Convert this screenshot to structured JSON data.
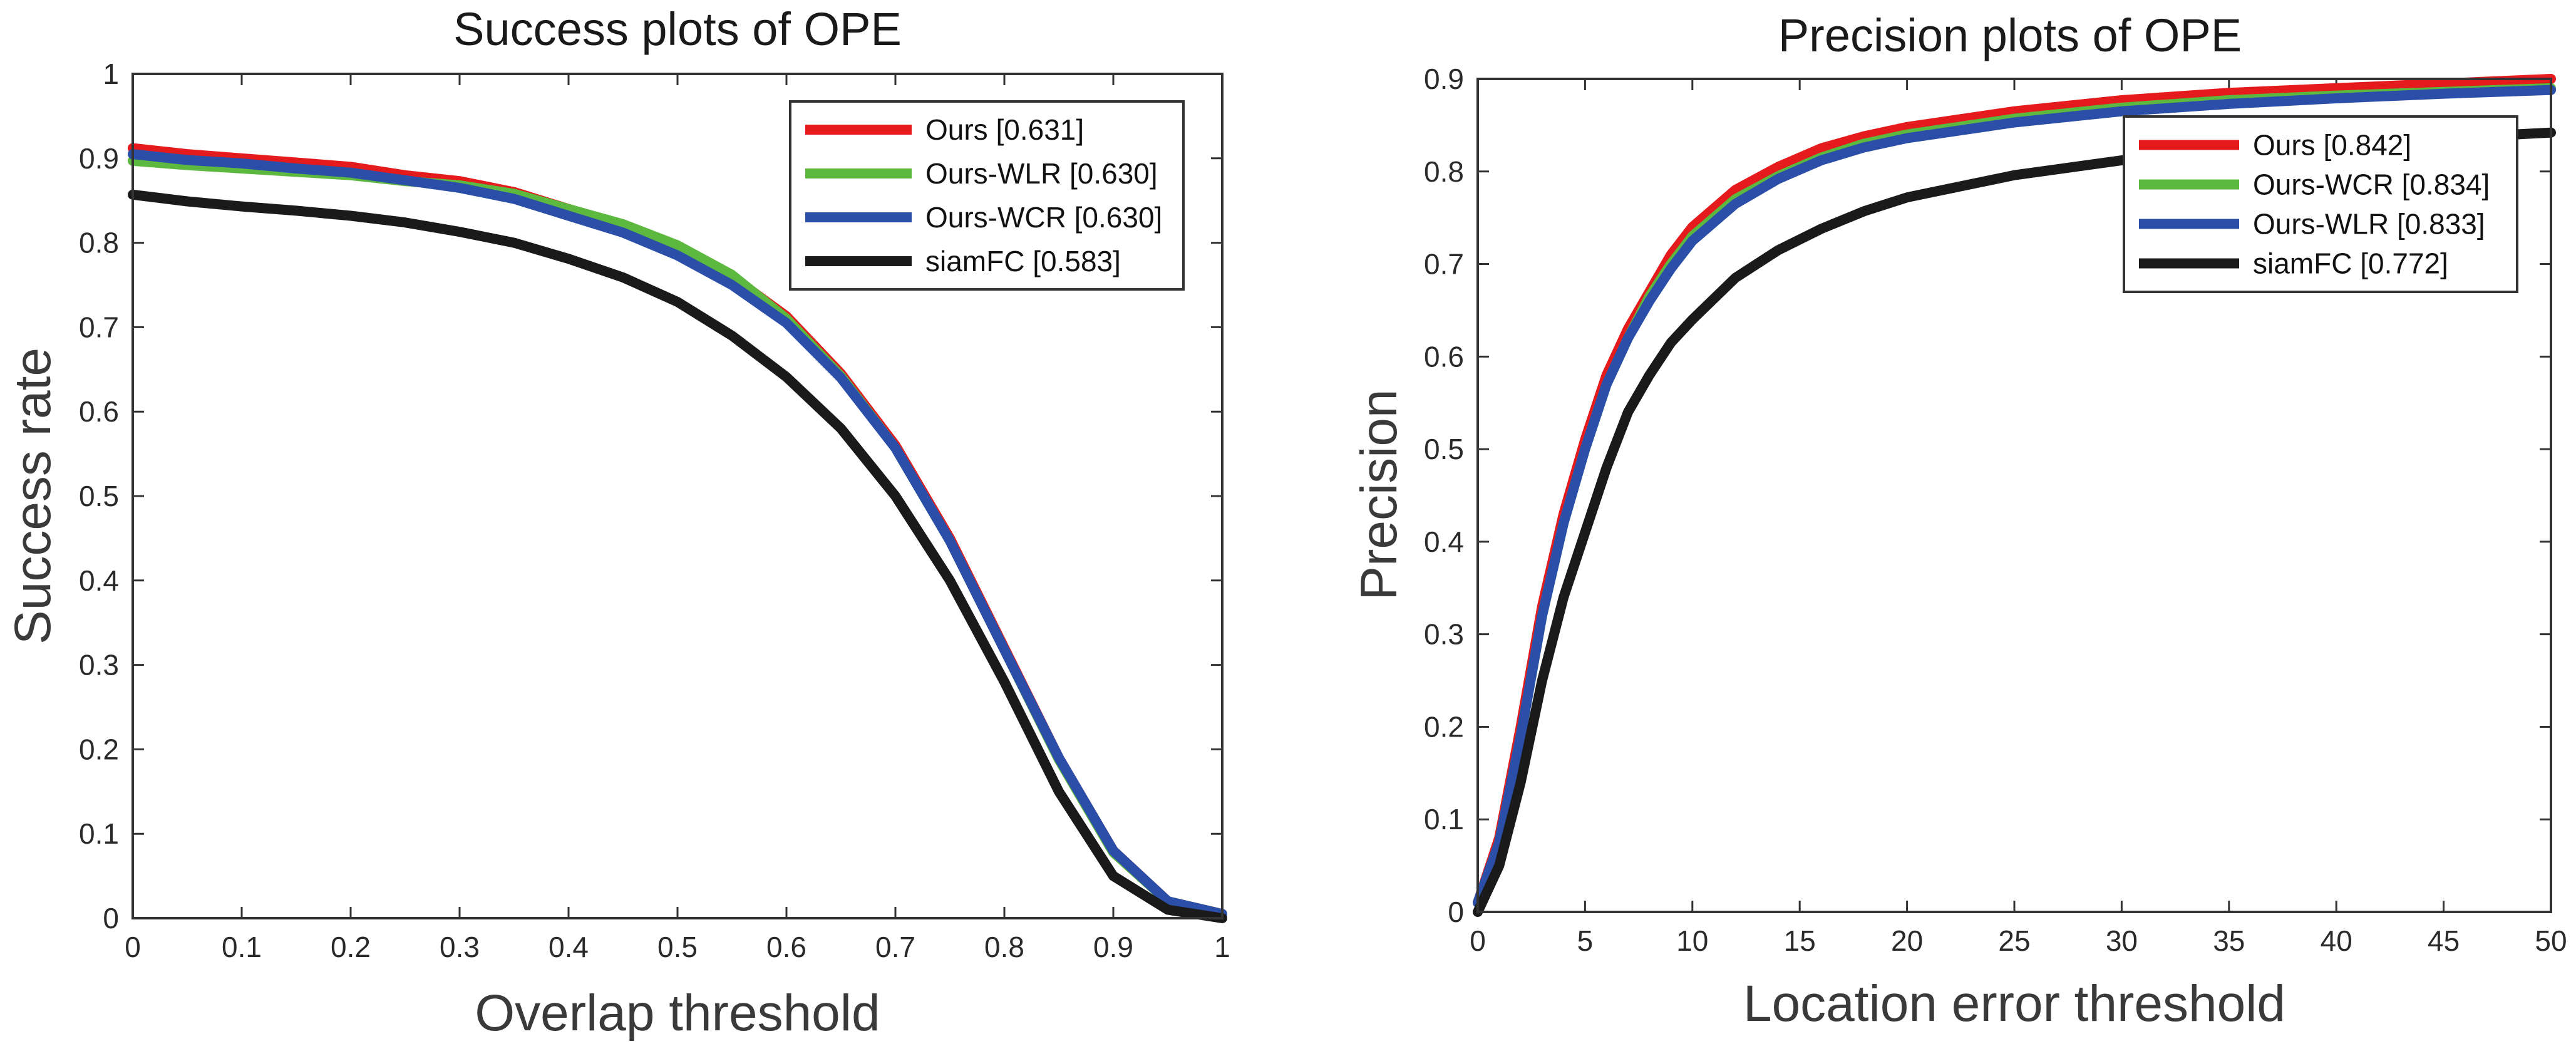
{
  "chart_data": [
    {
      "type": "line",
      "title": "Success plots of OPE",
      "xlabel": "Overlap threshold",
      "ylabel": "Success rate",
      "xlim": [
        0,
        1
      ],
      "ylim": [
        0,
        1
      ],
      "xticks": [
        0,
        0.1,
        0.2,
        0.3,
        0.4,
        0.5,
        0.6,
        0.7,
        0.8,
        0.9,
        1
      ],
      "yticks": [
        0,
        0.1,
        0.2,
        0.3,
        0.4,
        0.5,
        0.6,
        0.7,
        0.8,
        0.9,
        1
      ],
      "xtick_labels": [
        "0",
        "0.1",
        "0.2",
        "0.3",
        "0.4",
        "0.5",
        "0.6",
        "0.7",
        "0.8",
        "0.9",
        "1"
      ],
      "ytick_labels": [
        "0",
        "0.1",
        "0.2",
        "0.3",
        "0.4",
        "0.5",
        "0.6",
        "0.7",
        "0.8",
        "0.9",
        "1"
      ],
      "grid": false,
      "legend_position": "top-right",
      "x": [
        0,
        0.05,
        0.1,
        0.15,
        0.2,
        0.25,
        0.3,
        0.35,
        0.4,
        0.45,
        0.5,
        0.55,
        0.6,
        0.65,
        0.7,
        0.75,
        0.8,
        0.85,
        0.9,
        0.95,
        1
      ],
      "series": [
        {
          "name": "Ours [0.631]",
          "color": "#e41a1c",
          "width": 16,
          "values": [
            0.912,
            0.905,
            0.9,
            0.895,
            0.89,
            0.88,
            0.873,
            0.86,
            0.84,
            0.82,
            0.795,
            0.76,
            0.713,
            0.645,
            0.56,
            0.45,
            0.32,
            0.19,
            0.08,
            0.02,
            0.005
          ]
        },
        {
          "name": "Ours-WLR [0.630]",
          "color": "#5cb83f",
          "width": 16,
          "values": [
            0.897,
            0.892,
            0.888,
            0.884,
            0.88,
            0.873,
            0.868,
            0.858,
            0.84,
            0.822,
            0.797,
            0.762,
            0.71,
            0.642,
            0.557,
            0.447,
            0.318,
            0.188,
            0.078,
            0.02,
            0.005
          ]
        },
        {
          "name": "Ours-WCR [0.630]",
          "color": "#2b4fa8",
          "width": 16,
          "values": [
            0.905,
            0.898,
            0.894,
            0.888,
            0.883,
            0.874,
            0.865,
            0.852,
            0.832,
            0.812,
            0.785,
            0.75,
            0.705,
            0.64,
            0.557,
            0.447,
            0.318,
            0.19,
            0.08,
            0.02,
            0.005
          ]
        },
        {
          "name": "siamFC [0.583]",
          "color": "#1a1a1a",
          "width": 16,
          "values": [
            0.857,
            0.849,
            0.843,
            0.838,
            0.832,
            0.824,
            0.813,
            0.8,
            0.781,
            0.759,
            0.73,
            0.69,
            0.641,
            0.58,
            0.5,
            0.4,
            0.28,
            0.15,
            0.05,
            0.01,
            0.0
          ]
        }
      ]
    },
    {
      "type": "line",
      "title": "Precision plots of OPE",
      "xlabel": "Location error threshold",
      "ylabel": "Precision",
      "xlim": [
        0,
        50
      ],
      "ylim": [
        0,
        0.9
      ],
      "xticks": [
        0,
        5,
        10,
        15,
        20,
        25,
        30,
        35,
        40,
        45,
        50
      ],
      "yticks": [
        0,
        0.1,
        0.2,
        0.3,
        0.4,
        0.5,
        0.6,
        0.7,
        0.8,
        0.9
      ],
      "xtick_labels": [
        "0",
        "5",
        "10",
        "15",
        "20",
        "25",
        "30",
        "35",
        "40",
        "45",
        "50"
      ],
      "ytick_labels": [
        "0",
        "0.1",
        "0.2",
        "0.3",
        "0.4",
        "0.5",
        "0.6",
        "0.7",
        "0.8",
        "0.9"
      ],
      "grid": false,
      "legend_position": "top-right",
      "x": [
        0,
        1,
        2,
        3,
        4,
        5,
        6,
        7,
        8,
        9,
        10,
        12,
        14,
        16,
        18,
        20,
        25,
        30,
        35,
        40,
        45,
        50
      ],
      "series": [
        {
          "name": "Ours [0.842]",
          "color": "#e41a1c",
          "width": 16,
          "values": [
            0.01,
            0.08,
            0.2,
            0.33,
            0.43,
            0.51,
            0.58,
            0.63,
            0.67,
            0.71,
            0.74,
            0.78,
            0.805,
            0.825,
            0.838,
            0.848,
            0.865,
            0.877,
            0.885,
            0.89,
            0.895,
            0.9
          ]
        },
        {
          "name": "Ours-WCR [0.834]",
          "color": "#5cb83f",
          "width": 16,
          "values": [
            0.01,
            0.075,
            0.19,
            0.32,
            0.42,
            0.5,
            0.57,
            0.62,
            0.665,
            0.7,
            0.73,
            0.77,
            0.795,
            0.815,
            0.83,
            0.84,
            0.857,
            0.869,
            0.877,
            0.882,
            0.886,
            0.89
          ]
        },
        {
          "name": "Ours-WLR [0.833]",
          "color": "#2b4fa8",
          "width": 16,
          "values": [
            0.01,
            0.075,
            0.19,
            0.32,
            0.42,
            0.5,
            0.57,
            0.62,
            0.66,
            0.695,
            0.725,
            0.765,
            0.792,
            0.812,
            0.826,
            0.836,
            0.853,
            0.865,
            0.873,
            0.879,
            0.884,
            0.888
          ]
        },
        {
          "name": "siamFC [0.772]",
          "color": "#1a1a1a",
          "width": 16,
          "values": [
            0.0,
            0.05,
            0.14,
            0.25,
            0.34,
            0.41,
            0.48,
            0.54,
            0.58,
            0.615,
            0.64,
            0.685,
            0.715,
            0.738,
            0.757,
            0.772,
            0.796,
            0.812,
            0.822,
            0.83,
            0.836,
            0.842
          ]
        }
      ]
    }
  ]
}
